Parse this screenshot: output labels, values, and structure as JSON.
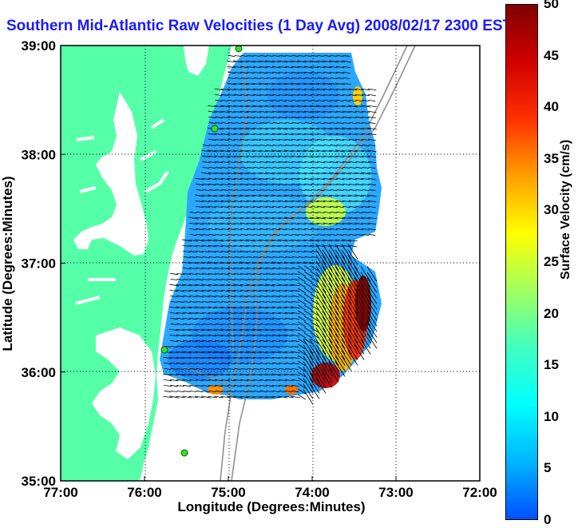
{
  "title": "Southern Mid-Atlantic Raw Velocities (1 Day Avg) 2008/02/17 2300 EST",
  "x_axis": {
    "label": "Longitude (Degrees:Minutes)",
    "ticks": [
      "77:00",
      "76:00",
      "75:00",
      "74:00",
      "73:00",
      "72:00"
    ]
  },
  "y_axis": {
    "label": "Latitude (Degrees:Minutes)",
    "ticks": [
      "39:00",
      "38:00",
      "37:00",
      "36:00",
      "35:00"
    ]
  },
  "colorbar": {
    "label": "Surface Velocity (cm/s)",
    "ticks": [
      "50",
      "45",
      "40",
      "35",
      "30",
      "25",
      "20",
      "15",
      "10",
      "5",
      "0"
    ],
    "range": [
      0,
      50
    ],
    "colors": [
      "#0050ff",
      "#00b4ff",
      "#00ffff",
      "#40ffc0",
      "#a0ff60",
      "#ffff00",
      "#ffa000",
      "#ff3000",
      "#d00000",
      "#800000"
    ]
  },
  "colors": {
    "land": "#55ffa8",
    "ocean": "#ffffff",
    "bathymetry": "#909090",
    "title": "#1a1aff"
  }
}
